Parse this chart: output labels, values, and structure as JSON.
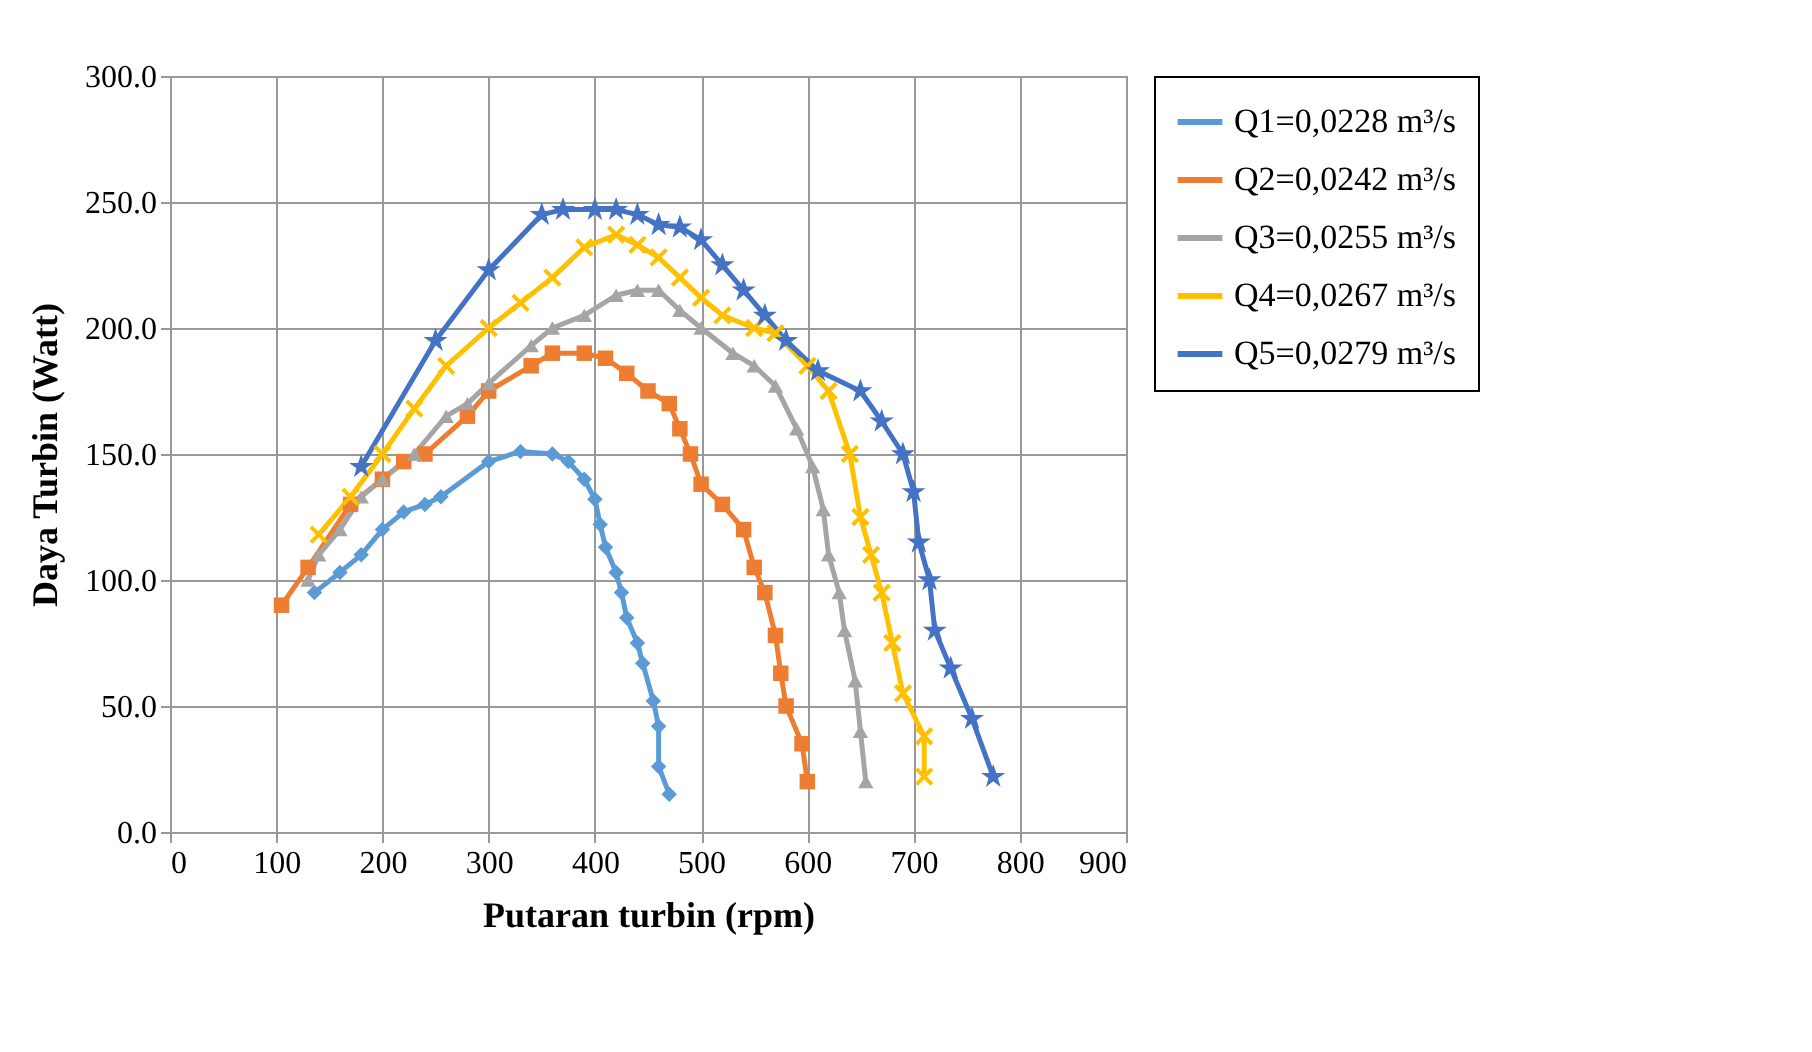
{
  "chart_data": {
    "type": "line",
    "xlabel": "Putaran turbin (rpm)",
    "ylabel": "Daya Turbin (Watt)",
    "xlim": [
      0,
      900
    ],
    "xticks": [
      0,
      100,
      200,
      300,
      400,
      500,
      600,
      700,
      800,
      900
    ],
    "ylim": [
      0,
      300
    ],
    "yticks": [
      {
        "value": 0,
        "label": "0.0"
      },
      {
        "value": 50,
        "label": "50.0"
      },
      {
        "value": 100,
        "label": "100.0"
      },
      {
        "value": 150,
        "label": "150.0"
      },
      {
        "value": 200,
        "label": "200.0"
      },
      {
        "value": 250,
        "label": "250.0"
      },
      {
        "value": 300,
        "label": "300.0"
      }
    ],
    "grid": true,
    "legend": "right",
    "line_style": "solid",
    "series": [
      {
        "name": "Q1=0,0228 m³/s",
        "color": "#5b9bd5",
        "marker": "diamond",
        "x": [
          136,
          160,
          180,
          200,
          220,
          240,
          255,
          300,
          330,
          360,
          375,
          390,
          400,
          405,
          410,
          420,
          425,
          430,
          440,
          445,
          455,
          460,
          460,
          470
        ],
        "values": [
          95,
          103,
          110,
          120,
          127,
          130,
          133,
          147,
          151,
          150,
          147,
          140,
          132,
          122,
          113,
          103,
          95,
          85,
          75,
          67,
          52,
          42,
          26,
          15
        ]
      },
      {
        "name": "Q2=0,0242 m³/s",
        "color": "#ed7d31",
        "marker": "square",
        "x": [
          105,
          130,
          170,
          200,
          220,
          240,
          280,
          300,
          340,
          360,
          390,
          410,
          430,
          450,
          470,
          480,
          490,
          500,
          520,
          540,
          550,
          560,
          570,
          575,
          580,
          595,
          600
        ],
        "values": [
          90,
          105,
          130,
          140,
          147,
          150,
          165,
          175,
          185,
          190,
          190,
          188,
          182,
          175,
          170,
          160,
          150,
          138,
          130,
          120,
          105,
          95,
          78,
          63,
          50,
          35,
          20
        ]
      },
      {
        "name": "Q3=0,0255 m³/s",
        "color": "#a5a5a5",
        "marker": "triangle",
        "x": [
          130,
          140,
          160,
          180,
          200,
          230,
          260,
          280,
          300,
          340,
          360,
          390,
          420,
          440,
          460,
          480,
          500,
          530,
          550,
          570,
          590,
          605,
          615,
          620,
          630,
          635,
          645,
          650,
          655
        ],
        "values": [
          100,
          110,
          120,
          133,
          140,
          150,
          165,
          170,
          178,
          193,
          200,
          205,
          213,
          215,
          215,
          207,
          200,
          190,
          185,
          177,
          160,
          145,
          128,
          110,
          95,
          80,
          60,
          40,
          20
        ]
      },
      {
        "name": "Q4=0,0267 m³/s",
        "color": "#ffc000",
        "marker": "cross",
        "x": [
          140,
          170,
          200,
          230,
          260,
          300,
          330,
          360,
          390,
          420,
          440,
          460,
          480,
          500,
          520,
          550,
          570,
          600,
          620,
          640,
          650,
          660,
          670,
          680,
          690,
          710,
          710
        ],
        "values": [
          118,
          133,
          150,
          168,
          185,
          200,
          210,
          220,
          232,
          237,
          233,
          228,
          220,
          212,
          205,
          200,
          198,
          185,
          175,
          150,
          125,
          110,
          95,
          75,
          55,
          38,
          22
        ]
      },
      {
        "name": "Q5=0,0279 m³/s",
        "color": "#4472c4",
        "marker": "star",
        "x": [
          180,
          250,
          300,
          350,
          370,
          400,
          420,
          440,
          460,
          480,
          500,
          520,
          540,
          560,
          580,
          610,
          650,
          670,
          690,
          700,
          705,
          715,
          720,
          735,
          755,
          775
        ],
        "values": [
          145,
          195,
          223,
          245,
          247,
          247,
          247,
          245,
          241,
          240,
          235,
          225,
          215,
          205,
          195,
          183,
          175,
          163,
          150,
          135,
          115,
          100,
          80,
          65,
          45,
          22
        ]
      }
    ]
  }
}
